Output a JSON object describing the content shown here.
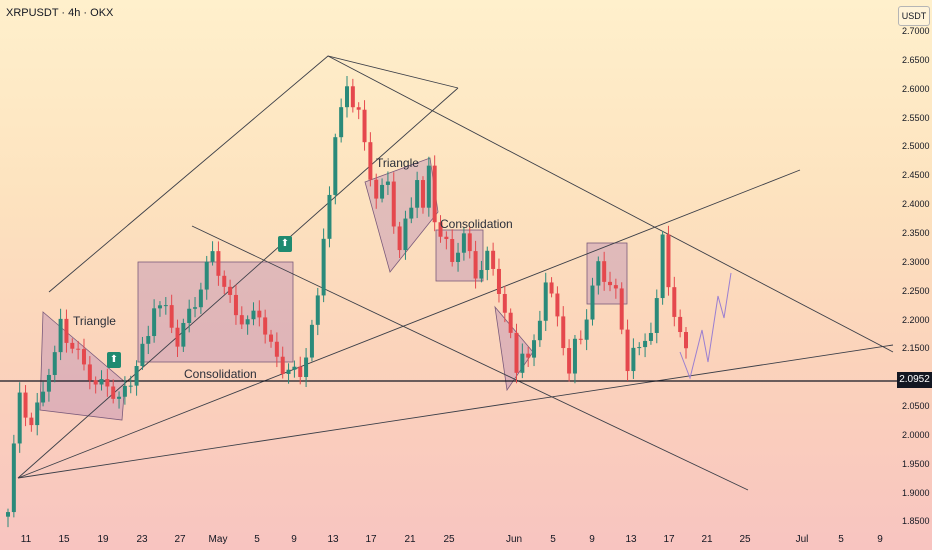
{
  "header": {
    "symbol_title": "XRPUSDT · 4h · OKX",
    "currency": "USDT",
    "current_price": "2.0952"
  },
  "colors": {
    "up": "#2a8a7a",
    "down": "#e5484d",
    "line": "#3c3f48",
    "zone": "rgba(178,130,178,0.38)",
    "projection": "#9b7fd1",
    "price_tag_bg": "#131722"
  },
  "icons": {
    "up_marker": "arrow-up-icon"
  },
  "chart_data": {
    "type": "candlestick",
    "symbol": "XRPUSDT",
    "interval": "4h",
    "exchange": "OKX",
    "y_ticks": [
      "2.7000",
      "2.6500",
      "2.6000",
      "2.5500",
      "2.5000",
      "2.4500",
      "2.4000",
      "2.3500",
      "2.3000",
      "2.2500",
      "2.2000",
      "2.1500",
      "2.1000",
      "2.0500",
      "2.0000",
      "1.9500",
      "1.9000",
      "1.8500"
    ],
    "ylim": [
      1.85,
      2.7
    ],
    "x_ticks": [
      "11",
      "15",
      "19",
      "23",
      "27",
      "May",
      "5",
      "9",
      "13",
      "17",
      "21",
      "25",
      "Jun",
      "5",
      "9",
      "13",
      "17",
      "21",
      "25",
      "Jul",
      "5",
      "9"
    ],
    "horizontal_level": 2.0952,
    "price_path": [
      [
        0,
        1.86
      ],
      [
        2,
        2.08
      ],
      [
        4,
        2.02
      ],
      [
        6,
        2.08
      ],
      [
        8,
        2.13
      ],
      [
        9,
        2.2
      ],
      [
        11,
        2.16
      ],
      [
        13,
        2.12
      ],
      [
        15,
        2.08
      ],
      [
        17,
        2.1
      ],
      [
        19,
        2.06
      ],
      [
        21,
        2.09
      ],
      [
        22,
        2.12
      ],
      [
        24,
        2.18
      ],
      [
        25,
        2.24
      ],
      [
        27,
        2.21
      ],
      [
        29,
        2.16
      ],
      [
        31,
        2.22
      ],
      [
        33,
        2.26
      ],
      [
        35,
        2.31
      ],
      [
        37,
        2.26
      ],
      [
        39,
        2.22
      ],
      [
        41,
        2.19
      ],
      [
        43,
        2.21
      ],
      [
        45,
        2.16
      ],
      [
        47,
        2.12
      ],
      [
        49,
        2.1
      ],
      [
        50,
        2.1
      ],
      [
        51,
        2.15
      ],
      [
        53,
        2.24
      ],
      [
        54,
        2.35
      ],
      [
        55,
        2.42
      ],
      [
        56,
        2.5
      ],
      [
        57,
        2.56
      ],
      [
        58,
        2.62
      ],
      [
        59,
        2.58
      ],
      [
        60,
        2.56
      ],
      [
        61,
        2.51
      ],
      [
        62,
        2.45
      ],
      [
        63,
        2.4
      ],
      [
        64,
        2.42
      ],
      [
        65,
        2.45
      ],
      [
        66,
        2.38
      ],
      [
        67,
        2.32
      ],
      [
        68,
        2.37
      ],
      [
        69,
        2.4
      ],
      [
        70,
        2.44
      ],
      [
        71,
        2.38
      ],
      [
        72,
        2.47
      ],
      [
        73,
        2.39
      ],
      [
        74,
        2.35
      ],
      [
        75,
        2.33
      ],
      [
        76,
        2.3
      ],
      [
        78,
        2.34
      ],
      [
        80,
        2.29
      ],
      [
        82,
        2.31
      ],
      [
        83,
        2.28
      ],
      [
        84,
        2.25
      ],
      [
        85,
        2.21
      ],
      [
        86,
        2.17
      ],
      [
        87,
        2.12
      ],
      [
        88,
        2.16
      ],
      [
        89,
        2.13
      ],
      [
        90,
        2.15
      ],
      [
        91,
        2.2
      ],
      [
        92,
        2.27
      ],
      [
        93,
        2.24
      ],
      [
        94,
        2.21
      ],
      [
        95,
        2.17
      ],
      [
        96,
        2.11
      ],
      [
        97,
        2.15
      ],
      [
        98,
        2.16
      ],
      [
        99,
        2.21
      ],
      [
        100,
        2.26
      ],
      [
        101,
        2.3
      ],
      [
        102,
        2.28
      ],
      [
        103,
        2.27
      ],
      [
        104,
        2.24
      ],
      [
        105,
        2.17
      ],
      [
        106,
        2.12
      ],
      [
        107,
        2.16
      ],
      [
        108,
        2.15
      ],
      [
        109,
        2.17
      ],
      [
        110,
        2.19
      ],
      [
        111,
        2.23
      ],
      [
        112,
        2.33
      ],
      [
        113,
        2.26
      ],
      [
        114,
        2.22
      ],
      [
        115,
        2.18
      ],
      [
        116,
        2.15
      ]
    ],
    "annotations": [
      "Triangle",
      "Consolidation",
      "Triangle",
      "Consolidation"
    ]
  }
}
